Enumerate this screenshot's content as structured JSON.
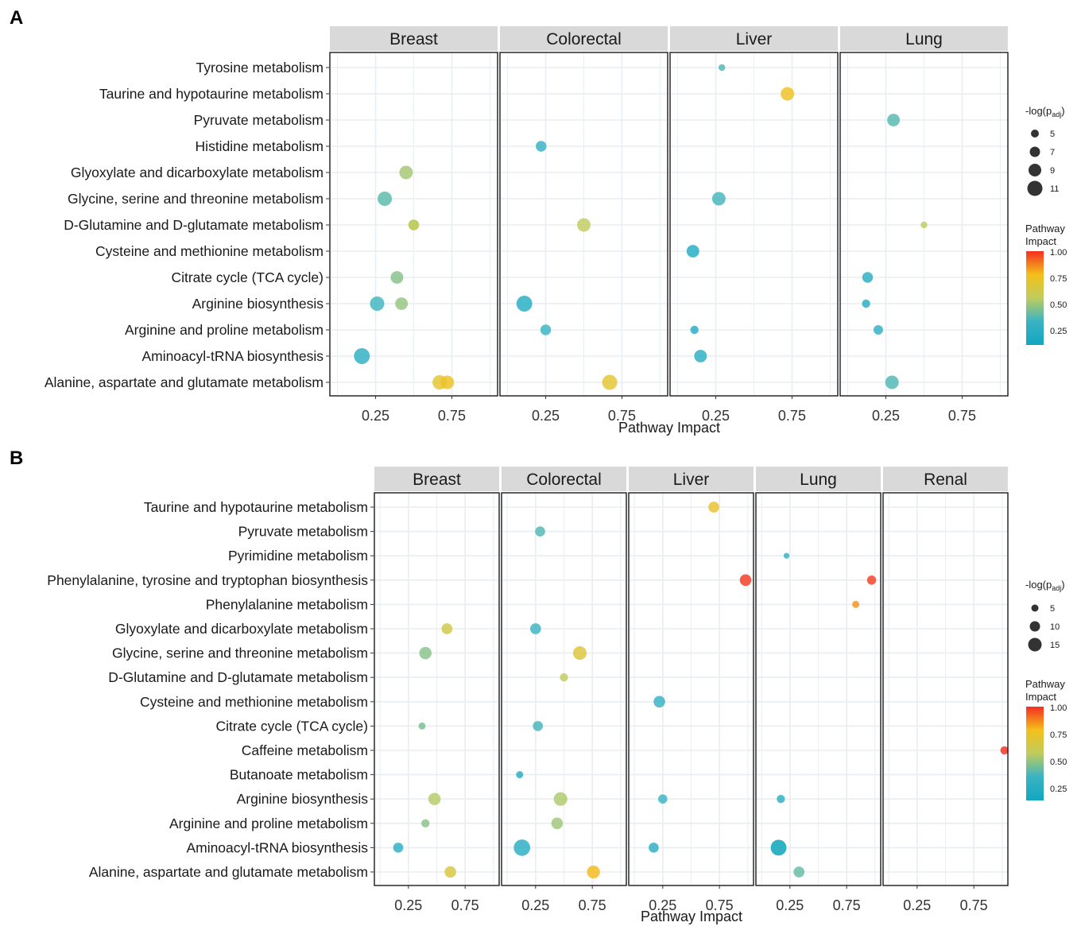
{
  "chart_data": [
    {
      "panel_label": "A",
      "type": "scatter",
      "xlabel": "Pathway Impact",
      "x_ticks": [
        "0.25",
        "0.75"
      ],
      "x_tick_values": [
        0.25,
        0.75
      ],
      "xlim": [
        -0.05,
        1.05
      ],
      "facets": [
        "Breast",
        "Colorectal",
        "Liver",
        "Lung"
      ],
      "categories": [
        "Tyrosine metabolism",
        "Taurine and hypotaurine metabolism",
        "Pyruvate metabolism",
        "Histidine metabolism",
        "Glyoxylate and dicarboxylate metabolism",
        "Glycine, serine and threonine metabolism",
        "D-Glutamine and D-glutamate metabolism",
        "Cysteine and methionine metabolism",
        "Citrate cycle (TCA cycle)",
        "Arginine biosynthesis",
        "Arginine and proline metabolism",
        "Aminoacyl-tRNA biosynthesis",
        "Alanine, aspartate and glutamate metabolism"
      ],
      "size_legend": {
        "title": "-log(p",
        "title_sub": "adj",
        "title_end": ")",
        "labels": [
          "5",
          "7",
          "9",
          "11"
        ],
        "values": [
          5,
          7,
          9,
          11
        ]
      },
      "color_legend": {
        "title_line1": "Pathway",
        "title_line2": "Impact",
        "labels": [
          "1.00",
          "0.75",
          "0.50",
          "0.25"
        ],
        "values": [
          1.0,
          0.75,
          0.5,
          0.25
        ]
      },
      "points": [
        {
          "facet": "Breast",
          "pathway": "Glyoxylate and dicarboxylate metabolism",
          "impact": 0.45,
          "neglogp": 8
        },
        {
          "facet": "Breast",
          "pathway": "Glycine, serine and threonine metabolism",
          "impact": 0.31,
          "neglogp": 9
        },
        {
          "facet": "Breast",
          "pathway": "D-Glutamine and D-glutamate metabolism",
          "impact": 0.5,
          "neglogp": 5
        },
        {
          "facet": "Breast",
          "pathway": "D-Glutamine and D-glutamate metabolism",
          "impact": 0.5,
          "neglogp": 5
        },
        {
          "facet": "Breast",
          "pathway": "Citrate cycle (TCA cycle)",
          "impact": 0.39,
          "neglogp": 7
        },
        {
          "facet": "Breast",
          "pathway": "Arginine biosynthesis",
          "impact": 0.26,
          "neglogp": 9
        },
        {
          "facet": "Breast",
          "pathway": "Arginine biosynthesis",
          "impact": 0.42,
          "neglogp": 7
        },
        {
          "facet": "Breast",
          "pathway": "Aminoacyl-tRNA biosynthesis",
          "impact": 0.16,
          "neglogp": 11
        },
        {
          "facet": "Breast",
          "pathway": "Alanine, aspartate and glutamate metabolism",
          "impact": 0.67,
          "neglogp": 9
        },
        {
          "facet": "Breast",
          "pathway": "Alanine, aspartate and glutamate metabolism",
          "impact": 0.72,
          "neglogp": 8
        },
        {
          "facet": "Colorectal",
          "pathway": "Histidine metabolism",
          "impact": 0.22,
          "neglogp": 5
        },
        {
          "facet": "Colorectal",
          "pathway": "D-Glutamine and D-glutamate metabolism",
          "impact": 0.5,
          "neglogp": 8
        },
        {
          "facet": "Colorectal",
          "pathway": "Arginine biosynthesis",
          "impact": 0.11,
          "neglogp": 11
        },
        {
          "facet": "Colorectal",
          "pathway": "Arginine and proline metabolism",
          "impact": 0.25,
          "neglogp": 5
        },
        {
          "facet": "Colorectal",
          "pathway": "Alanine, aspartate and glutamate metabolism",
          "impact": 0.67,
          "neglogp": 10
        },
        {
          "facet": "Liver",
          "pathway": "Tyrosine metabolism",
          "impact": 0.29,
          "neglogp": 2
        },
        {
          "facet": "Liver",
          "pathway": "Taurine and hypotaurine metabolism",
          "impact": 0.72,
          "neglogp": 8
        },
        {
          "facet": "Liver",
          "pathway": "Glycine, serine and threonine metabolism",
          "impact": 0.27,
          "neglogp": 8
        },
        {
          "facet": "Liver",
          "pathway": "Cysteine and methionine metabolism",
          "impact": 0.1,
          "neglogp": 7
        },
        {
          "facet": "Liver",
          "pathway": "Arginine and proline metabolism",
          "impact": 0.11,
          "neglogp": 3
        },
        {
          "facet": "Liver",
          "pathway": "Aminoacyl-tRNA biosynthesis",
          "impact": 0.15,
          "neglogp": 7
        },
        {
          "facet": "Lung",
          "pathway": "Pyruvate metabolism",
          "impact": 0.3,
          "neglogp": 7
        },
        {
          "facet": "Lung",
          "pathway": "D-Glutamine and D-glutamate metabolism",
          "impact": 0.5,
          "neglogp": 2
        },
        {
          "facet": "Lung",
          "pathway": "Citrate cycle (TCA cycle)",
          "impact": 0.13,
          "neglogp": 5
        },
        {
          "facet": "Lung",
          "pathway": "Arginine biosynthesis",
          "impact": 0.12,
          "neglogp": 3
        },
        {
          "facet": "Lung",
          "pathway": "Arginine and proline metabolism",
          "impact": 0.2,
          "neglogp": 4
        },
        {
          "facet": "Lung",
          "pathway": "Alanine, aspartate and glutamate metabolism",
          "impact": 0.29,
          "neglogp": 8
        }
      ]
    },
    {
      "panel_label": "B",
      "type": "scatter",
      "xlabel": "Pathway Impact",
      "x_ticks": [
        "0.25",
        "0.75"
      ],
      "x_tick_values": [
        0.25,
        0.75
      ],
      "xlim": [
        -0.05,
        1.05
      ],
      "facets": [
        "Breast",
        "Colorectal",
        "Liver",
        "Lung",
        "Renal"
      ],
      "categories": [
        "Taurine and hypotaurine metabolism",
        "Pyruvate metabolism",
        "Pyrimidine metabolism",
        "Phenylalanine, tyrosine and tryptophan biosynthesis",
        "Phenylalanine metabolism",
        "Glyoxylate and dicarboxylate metabolism",
        "Glycine, serine and threonine metabolism",
        "D-Glutamine and D-glutamate metabolism",
        "Cysteine and methionine metabolism",
        "Citrate cycle (TCA cycle)",
        "Caffeine metabolism",
        "Butanoate metabolism",
        "Arginine biosynthesis",
        "Arginine and proline metabolism",
        "Aminoacyl-tRNA biosynthesis",
        "Alanine, aspartate and glutamate metabolism"
      ],
      "size_legend": {
        "title": "-log(p",
        "title_sub": "adj",
        "title_end": ")",
        "labels": [
          "5",
          "10",
          "15"
        ],
        "values": [
          5,
          10,
          15
        ]
      },
      "color_legend": {
        "title_line1": "Pathway",
        "title_line2": "Impact",
        "labels": [
          "1.00",
          "0.75",
          "0.50",
          "0.25"
        ],
        "values": [
          1.0,
          0.75,
          0.5,
          0.25
        ]
      },
      "points": [
        {
          "facet": "Breast",
          "pathway": "Glyoxylate and dicarboxylate metabolism",
          "impact": 0.59,
          "neglogp": 7
        },
        {
          "facet": "Breast",
          "pathway": "Glycine, serine and threonine metabolism",
          "impact": 0.4,
          "neglogp": 9
        },
        {
          "facet": "Breast",
          "pathway": "Citrate cycle (TCA cycle)",
          "impact": 0.37,
          "neglogp": 3
        },
        {
          "facet": "Breast",
          "pathway": "Arginine biosynthesis",
          "impact": 0.48,
          "neglogp": 9
        },
        {
          "facet": "Breast",
          "pathway": "Arginine and proline metabolism",
          "impact": 0.4,
          "neglogp": 4
        },
        {
          "facet": "Breast",
          "pathway": "Aminoacyl-tRNA biosynthesis",
          "impact": 0.16,
          "neglogp": 6
        },
        {
          "facet": "Breast",
          "pathway": "Alanine, aspartate and glutamate metabolism",
          "impact": 0.62,
          "neglogp": 8
        },
        {
          "facet": "Colorectal",
          "pathway": "Pyruvate metabolism",
          "impact": 0.29,
          "neglogp": 6
        },
        {
          "facet": "Colorectal",
          "pathway": "Glyoxylate and dicarboxylate metabolism",
          "impact": 0.25,
          "neglogp": 7
        },
        {
          "facet": "Colorectal",
          "pathway": "Glycine, serine and threonine metabolism",
          "impact": 0.64,
          "neglogp": 11
        },
        {
          "facet": "Colorectal",
          "pathway": "D-Glutamine and D-glutamate metabolism",
          "impact": 0.5,
          "neglogp": 4
        },
        {
          "facet": "Colorectal",
          "pathway": "Citrate cycle (TCA cycle)",
          "impact": 0.27,
          "neglogp": 6
        },
        {
          "facet": "Colorectal",
          "pathway": "Butanoate metabolism",
          "impact": 0.11,
          "neglogp": 3
        },
        {
          "facet": "Colorectal",
          "pathway": "Arginine biosynthesis",
          "impact": 0.47,
          "neglogp": 11
        },
        {
          "facet": "Colorectal",
          "pathway": "Arginine and proline metabolism",
          "impact": 0.44,
          "neglogp": 8
        },
        {
          "facet": "Colorectal",
          "pathway": "Aminoacyl-tRNA biosynthesis",
          "impact": 0.13,
          "neglogp": 16
        },
        {
          "facet": "Colorectal",
          "pathway": "Alanine, aspartate and glutamate metabolism",
          "impact": 0.76,
          "neglogp": 10
        },
        {
          "facet": "Liver",
          "pathway": "Taurine and hypotaurine metabolism",
          "impact": 0.7,
          "neglogp": 7
        },
        {
          "facet": "Liver",
          "pathway": "Phenylalanine, tyrosine and tryptophan biosynthesis",
          "impact": 0.98,
          "neglogp": 8
        },
        {
          "facet": "Liver",
          "pathway": "Cysteine and methionine metabolism",
          "impact": 0.22,
          "neglogp": 8
        },
        {
          "facet": "Liver",
          "pathway": "Arginine biosynthesis",
          "impact": 0.25,
          "neglogp": 5
        },
        {
          "facet": "Liver",
          "pathway": "Aminoacyl-tRNA biosynthesis",
          "impact": 0.17,
          "neglogp": 6
        },
        {
          "facet": "Lung",
          "pathway": "Pyrimidine metabolism",
          "impact": 0.22,
          "neglogp": 2
        },
        {
          "facet": "Lung",
          "pathway": "Phenylalanine, tyrosine and tryptophan biosynthesis",
          "impact": 0.97,
          "neglogp": 5
        },
        {
          "facet": "Lung",
          "pathway": "Phenylalanine metabolism",
          "impact": 0.83,
          "neglogp": 3
        },
        {
          "facet": "Lung",
          "pathway": "Arginine biosynthesis",
          "impact": 0.17,
          "neglogp": 4
        },
        {
          "facet": "Lung",
          "pathway": "Aminoacyl-tRNA biosynthesis",
          "impact": 0.15,
          "neglogp": 15
        },
        {
          "facet": "Lung",
          "pathway": "Aminoacyl-tRNA biosynthesis",
          "impact": 0.15,
          "neglogp": 14
        },
        {
          "facet": "Lung",
          "pathway": "Alanine, aspartate and glutamate metabolism",
          "impact": 0.33,
          "neglogp": 7
        },
        {
          "facet": "Renal",
          "pathway": "Caffeine metabolism",
          "impact": 1.02,
          "neglogp": 4
        }
      ]
    }
  ]
}
